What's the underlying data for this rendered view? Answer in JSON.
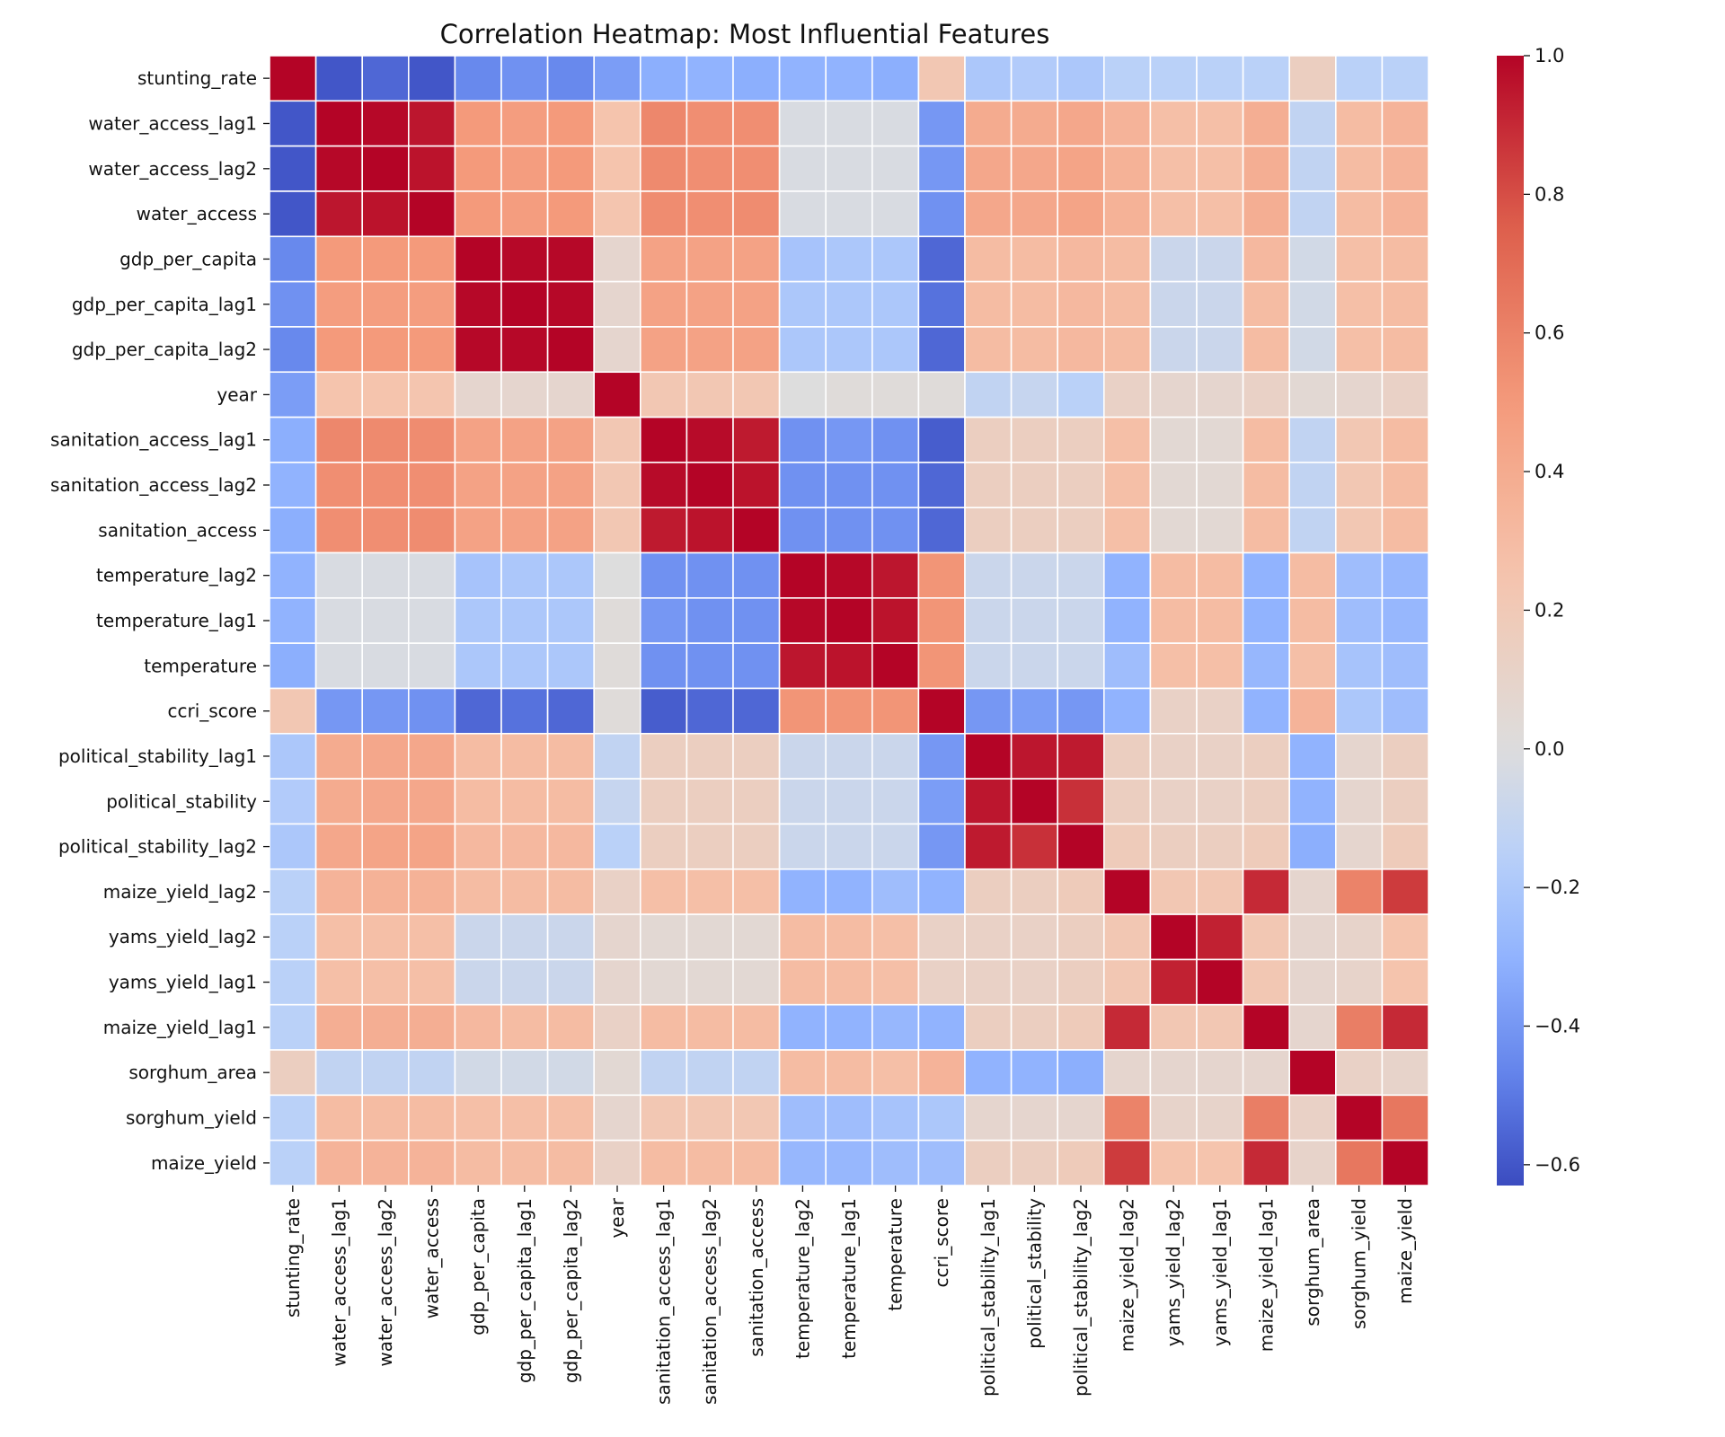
{
  "chart_data": {
    "type": "heatmap",
    "title": "Correlation Heatmap: Most Influential Features",
    "xlabel": "",
    "ylabel": "",
    "colormap": "coolwarm",
    "vmin": -0.63,
    "vmax": 1.0,
    "colorbar_ticks": [
      1.0,
      0.8,
      0.6,
      0.4,
      0.2,
      0.0,
      -0.2,
      -0.4,
      -0.6
    ],
    "colorbar_tick_labels": [
      "1.0",
      "0.8",
      "0.6",
      "0.4",
      "0.2",
      "0.0",
      "−0.2",
      "−0.4",
      "−0.6"
    ],
    "labels": [
      "stunting_rate",
      "water_access_lag1",
      "water_access_lag2",
      "water_access",
      "gdp_per_capita",
      "gdp_per_capita_lag1",
      "gdp_per_capita_lag2",
      "year",
      "sanitation_access_lag1",
      "sanitation_access_lag2",
      "sanitation_access",
      "temperature_lag2",
      "temperature_lag1",
      "temperature",
      "ccri_score",
      "political_stability_lag1",
      "political_stability",
      "political_stability_lag2",
      "maize_yield_lag2",
      "yams_yield_lag2",
      "yams_yield_lag1",
      "maize_yield_lag1",
      "sorghum_area",
      "sorghum_yield",
      "maize_yield"
    ],
    "matrix": [
      [
        1.0,
        -0.6,
        -0.55,
        -0.6,
        -0.45,
        -0.42,
        -0.45,
        -0.38,
        -0.32,
        -0.3,
        -0.32,
        -0.3,
        -0.3,
        -0.32,
        0.22,
        -0.2,
        -0.18,
        -0.2,
        -0.15,
        -0.15,
        -0.15,
        -0.15,
        0.15,
        -0.15,
        -0.15
      ],
      [
        -0.6,
        1.0,
        0.99,
        0.95,
        0.5,
        0.48,
        0.5,
        0.25,
        0.58,
        0.55,
        0.55,
        -0.02,
        -0.02,
        -0.02,
        -0.4,
        0.4,
        0.4,
        0.42,
        0.35,
        0.28,
        0.28,
        0.38,
        -0.12,
        0.3,
        0.35
      ],
      [
        -0.6,
        0.99,
        1.0,
        0.96,
        0.5,
        0.48,
        0.5,
        0.25,
        0.57,
        0.55,
        0.55,
        -0.02,
        -0.02,
        -0.02,
        -0.4,
        0.42,
        0.42,
        0.44,
        0.36,
        0.28,
        0.28,
        0.38,
        -0.12,
        0.3,
        0.35
      ],
      [
        -0.6,
        0.95,
        0.96,
        1.0,
        0.5,
        0.48,
        0.5,
        0.24,
        0.56,
        0.55,
        0.56,
        -0.02,
        -0.02,
        -0.02,
        -0.42,
        0.42,
        0.42,
        0.44,
        0.36,
        0.28,
        0.28,
        0.38,
        -0.12,
        0.3,
        0.35
      ],
      [
        -0.45,
        0.5,
        0.5,
        0.5,
        1.0,
        0.99,
        0.99,
        0.08,
        0.45,
        0.45,
        0.45,
        -0.22,
        -0.2,
        -0.2,
        -0.55,
        0.3,
        0.3,
        0.32,
        0.3,
        -0.08,
        -0.08,
        0.32,
        -0.05,
        0.28,
        0.3
      ],
      [
        -0.42,
        0.48,
        0.48,
        0.48,
        0.99,
        1.0,
        0.99,
        0.08,
        0.45,
        0.45,
        0.45,
        -0.2,
        -0.2,
        -0.2,
        -0.52,
        0.3,
        0.3,
        0.32,
        0.3,
        -0.08,
        -0.08,
        0.3,
        -0.05,
        0.28,
        0.3
      ],
      [
        -0.45,
        0.5,
        0.5,
        0.5,
        0.99,
        0.99,
        1.0,
        0.08,
        0.45,
        0.45,
        0.45,
        -0.2,
        -0.2,
        -0.2,
        -0.55,
        0.3,
        0.3,
        0.32,
        0.3,
        -0.08,
        -0.08,
        0.3,
        -0.05,
        0.28,
        0.3
      ],
      [
        -0.38,
        0.25,
        0.25,
        0.24,
        0.08,
        0.08,
        0.08,
        1.0,
        0.22,
        0.22,
        0.22,
        0.0,
        0.02,
        0.02,
        0.02,
        -0.12,
        -0.1,
        -0.15,
        0.12,
        0.08,
        0.08,
        0.12,
        0.05,
        0.08,
        0.12
      ],
      [
        -0.32,
        0.58,
        0.57,
        0.56,
        0.45,
        0.45,
        0.45,
        0.22,
        1.0,
        0.98,
        0.94,
        -0.42,
        -0.4,
        -0.42,
        -0.58,
        0.15,
        0.15,
        0.15,
        0.28,
        0.05,
        0.05,
        0.3,
        -0.12,
        0.22,
        0.3
      ],
      [
        -0.3,
        0.55,
        0.55,
        0.55,
        0.45,
        0.45,
        0.45,
        0.22,
        0.98,
        1.0,
        0.96,
        -0.42,
        -0.42,
        -0.42,
        -0.55,
        0.15,
        0.15,
        0.15,
        0.28,
        0.05,
        0.05,
        0.3,
        -0.12,
        0.22,
        0.3
      ],
      [
        -0.32,
        0.55,
        0.55,
        0.56,
        0.45,
        0.45,
        0.45,
        0.22,
        0.94,
        0.96,
        1.0,
        -0.42,
        -0.42,
        -0.42,
        -0.55,
        0.15,
        0.15,
        0.15,
        0.28,
        0.05,
        0.05,
        0.3,
        -0.12,
        0.22,
        0.3
      ],
      [
        -0.3,
        -0.02,
        -0.02,
        -0.02,
        -0.22,
        -0.2,
        -0.2,
        0.0,
        -0.42,
        -0.42,
        -0.42,
        1.0,
        0.99,
        0.95,
        0.52,
        -0.08,
        -0.08,
        -0.08,
        -0.3,
        0.3,
        0.3,
        -0.3,
        0.3,
        -0.25,
        -0.28
      ],
      [
        -0.3,
        -0.02,
        -0.02,
        -0.02,
        -0.2,
        -0.2,
        -0.2,
        0.02,
        -0.4,
        -0.42,
        -0.42,
        0.99,
        1.0,
        0.96,
        0.52,
        -0.08,
        -0.08,
        -0.08,
        -0.3,
        0.3,
        0.3,
        -0.3,
        0.3,
        -0.25,
        -0.28
      ],
      [
        -0.32,
        -0.02,
        -0.02,
        -0.02,
        -0.2,
        -0.2,
        -0.2,
        0.02,
        -0.42,
        -0.42,
        -0.42,
        0.95,
        0.96,
        1.0,
        0.52,
        -0.08,
        -0.08,
        -0.08,
        -0.25,
        0.28,
        0.28,
        -0.28,
        0.28,
        -0.22,
        -0.25
      ],
      [
        0.22,
        -0.4,
        -0.4,
        -0.42,
        -0.55,
        -0.52,
        -0.55,
        0.02,
        -0.58,
        -0.55,
        -0.55,
        0.52,
        0.52,
        0.52,
        1.0,
        -0.4,
        -0.38,
        -0.4,
        -0.3,
        0.12,
        0.12,
        -0.3,
        0.35,
        -0.2,
        -0.25
      ],
      [
        -0.2,
        0.4,
        0.42,
        0.42,
        0.3,
        0.3,
        0.3,
        -0.12,
        0.15,
        0.15,
        0.15,
        -0.08,
        -0.08,
        -0.08,
        -0.4,
        1.0,
        0.95,
        0.94,
        0.15,
        0.12,
        0.12,
        0.15,
        -0.3,
        0.08,
        0.15
      ],
      [
        -0.18,
        0.4,
        0.42,
        0.42,
        0.3,
        0.3,
        0.3,
        -0.1,
        0.15,
        0.15,
        0.15,
        -0.08,
        -0.08,
        -0.08,
        -0.38,
        0.95,
        1.0,
        0.88,
        0.15,
        0.12,
        0.12,
        0.15,
        -0.3,
        0.08,
        0.15
      ],
      [
        -0.2,
        0.42,
        0.44,
        0.44,
        0.32,
        0.32,
        0.32,
        -0.15,
        0.15,
        0.15,
        0.15,
        -0.08,
        -0.08,
        -0.08,
        -0.4,
        0.94,
        0.88,
        1.0,
        0.18,
        0.15,
        0.15,
        0.18,
        -0.32,
        0.08,
        0.18
      ],
      [
        -0.15,
        0.35,
        0.36,
        0.36,
        0.3,
        0.3,
        0.3,
        0.12,
        0.28,
        0.28,
        0.28,
        -0.3,
        -0.3,
        -0.25,
        -0.3,
        0.15,
        0.15,
        0.18,
        1.0,
        0.22,
        0.22,
        0.9,
        0.08,
        0.6,
        0.85
      ],
      [
        -0.15,
        0.28,
        0.28,
        0.28,
        -0.08,
        -0.08,
        -0.08,
        0.08,
        0.05,
        0.05,
        0.05,
        0.3,
        0.3,
        0.28,
        0.12,
        0.12,
        0.12,
        0.15,
        0.22,
        1.0,
        0.92,
        0.22,
        0.08,
        0.1,
        0.25
      ],
      [
        -0.15,
        0.28,
        0.28,
        0.28,
        -0.08,
        -0.08,
        -0.08,
        0.08,
        0.05,
        0.05,
        0.05,
        0.3,
        0.3,
        0.28,
        0.12,
        0.12,
        0.12,
        0.15,
        0.22,
        0.92,
        1.0,
        0.22,
        0.08,
        0.1,
        0.25
      ],
      [
        -0.15,
        0.38,
        0.38,
        0.38,
        0.32,
        0.3,
        0.3,
        0.12,
        0.3,
        0.3,
        0.3,
        -0.3,
        -0.3,
        -0.28,
        -0.3,
        0.15,
        0.15,
        0.18,
        0.9,
        0.22,
        0.22,
        1.0,
        0.08,
        0.62,
        0.9
      ],
      [
        0.15,
        -0.12,
        -0.12,
        -0.12,
        -0.05,
        -0.05,
        -0.05,
        0.05,
        -0.12,
        -0.12,
        -0.12,
        0.3,
        0.3,
        0.28,
        0.35,
        -0.3,
        -0.3,
        -0.32,
        0.08,
        0.08,
        0.08,
        0.08,
        1.0,
        0.12,
        0.1
      ],
      [
        -0.15,
        0.3,
        0.3,
        0.3,
        0.28,
        0.28,
        0.28,
        0.08,
        0.22,
        0.22,
        0.22,
        -0.25,
        -0.25,
        -0.22,
        -0.2,
        0.08,
        0.08,
        0.08,
        0.6,
        0.1,
        0.1,
        0.62,
        0.12,
        1.0,
        0.65
      ],
      [
        -0.15,
        0.35,
        0.35,
        0.35,
        0.3,
        0.3,
        0.3,
        0.12,
        0.3,
        0.3,
        0.3,
        -0.28,
        -0.28,
        -0.25,
        -0.25,
        0.15,
        0.15,
        0.18,
        0.85,
        0.25,
        0.25,
        0.9,
        0.1,
        0.65,
        1.0
      ]
    ]
  }
}
